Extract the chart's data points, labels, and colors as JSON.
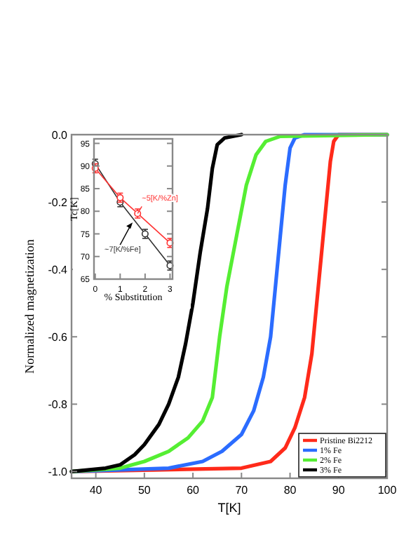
{
  "chart_data": [
    {
      "type": "line",
      "xlabel": "T[K]",
      "ylabel": "Normalized magnetization",
      "xlim": [
        35,
        100
      ],
      "ylim": [
        -1.02,
        0
      ],
      "xticks": [
        40,
        50,
        60,
        70,
        80,
        90,
        100
      ],
      "yticks": [
        {
          "value": -1,
          "label": "-1.0"
        },
        {
          "value": -0.8,
          "label": "-0.8"
        },
        {
          "value": -0.6,
          "label": "-0.6"
        },
        {
          "value": -0.4,
          "label": "-0.4"
        },
        {
          "value": -0.2,
          "label": "-0.2"
        },
        {
          "value": 0,
          "label": "0.0"
        }
      ],
      "legend": "bottom right",
      "grid": false,
      "line_style": "solid",
      "series": [
        {
          "name": "Pristine Bi2212",
          "color": "#ff2a1a",
          "x": [
            35,
            70,
            76,
            79,
            81,
            83,
            84.5,
            85.5,
            86.5,
            87.5,
            88.3,
            89,
            90,
            100
          ],
          "values": [
            -1,
            -0.99,
            -0.97,
            -0.93,
            -0.87,
            -0.78,
            -0.65,
            -0.5,
            -0.35,
            -0.2,
            -0.08,
            -0.02,
            0,
            0
          ]
        },
        {
          "name": "1% Fe",
          "color": "#2b6cff",
          "x": [
            35,
            55,
            62,
            66,
            70,
            72.5,
            74.5,
            76,
            77,
            78,
            79,
            80,
            81,
            83,
            100
          ],
          "values": [
            -1,
            -0.99,
            -0.97,
            -0.94,
            -0.89,
            -0.82,
            -0.72,
            -0.6,
            -0.45,
            -0.3,
            -0.15,
            -0.04,
            -0.01,
            0,
            0
          ]
        },
        {
          "name": "2% Fe",
          "color": "#55ee33",
          "x": [
            35,
            45,
            50,
            55,
            59,
            62,
            64,
            65.5,
            67,
            69,
            71,
            73,
            75,
            78,
            100
          ],
          "values": [
            -1,
            -0.99,
            -0.97,
            -0.94,
            -0.9,
            -0.85,
            -0.78,
            -0.6,
            -0.45,
            -0.3,
            -0.15,
            -0.06,
            -0.02,
            -0.005,
            0
          ]
        },
        {
          "name": "3% Fe",
          "color": "#000000",
          "x": [
            35,
            42,
            45,
            48,
            50,
            53,
            55,
            57,
            58.5,
            60,
            61.5,
            63,
            64,
            65,
            66.5,
            70
          ],
          "values": [
            -1,
            -0.99,
            -0.98,
            -0.95,
            -0.92,
            -0.86,
            -0.8,
            -0.72,
            -0.62,
            -0.5,
            -0.35,
            -0.22,
            -0.1,
            -0.03,
            -0.01,
            0
          ]
        }
      ]
    },
    {
      "type": "line",
      "xlabel": "% Substitution",
      "ylabel": "Tc[K]",
      "xlim": [
        -0.05,
        3.1
      ],
      "ylim": [
        65,
        96
      ],
      "xticks": [
        0,
        1,
        2,
        3
      ],
      "yticks": [
        65,
        70,
        75,
        80,
        85,
        90,
        95
      ],
      "marker": "circle",
      "grid": false,
      "annotations": [
        {
          "text": "~7[K/%Fe]",
          "x": 1.5,
          "y": 77.5
        },
        {
          "text": "~5[K/%Zn]",
          "x": 1.7,
          "y": 79.5
        }
      ],
      "series": [
        {
          "color": "#333333",
          "x": [
            0,
            1,
            2,
            3
          ],
          "values": [
            90.5,
            82,
            75,
            68
          ],
          "errors": [
            1,
            1,
            1,
            1
          ]
        },
        {
          "color": "#ff3333",
          "x": [
            0,
            1,
            1.7,
            3
          ],
          "values": [
            89.5,
            83,
            79.5,
            73
          ],
          "errors": [
            1,
            1,
            1,
            1
          ]
        }
      ]
    }
  ]
}
